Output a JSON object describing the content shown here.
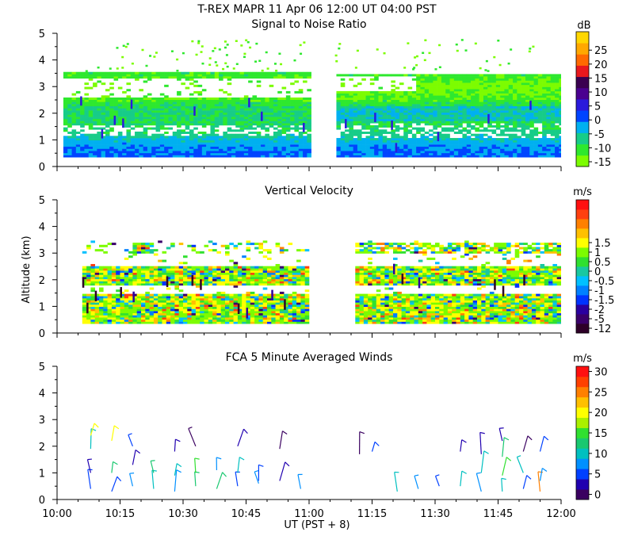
{
  "title": "T-REX  MAPR 11 Apr 06  12:00 UT  04:00  PST",
  "x_axis": {
    "label": "UT  (PST + 8)",
    "ticks": [
      "10:00",
      "10:15",
      "10:30",
      "10:45",
      "11:00",
      "11:15",
      "11:30",
      "11:45",
      "12:00"
    ],
    "range_minutes": [
      0,
      120
    ],
    "data_gap_minutes": [
      60,
      65
    ]
  },
  "y_axis": {
    "label": "Altitude (km)",
    "ticks": [
      "0",
      "1",
      "2",
      "3",
      "4",
      "5"
    ],
    "range": [
      0,
      5
    ]
  },
  "colors": {
    "snr_scale": [
      "#7cfc00",
      "#2ee82e",
      "#17cc88",
      "#00b0f0",
      "#0044ff",
      "#2a1adc",
      "#4a0090",
      "#3a0050",
      "#e8181e",
      "#ff6a00",
      "#ffa800",
      "#ffd700"
    ],
    "vel_scale": [
      "#2e0028",
      "#3a006a",
      "#2a00a0",
      "#0033ff",
      "#0080ff",
      "#00c0ff",
      "#19c8a0",
      "#30e030",
      "#7cfc00",
      "#ffff00",
      "#ffc000",
      "#ff8000",
      "#ff4010",
      "#ff1010"
    ],
    "wind_scale": [
      "#3a0060",
      "#2000b0",
      "#0040ff",
      "#0090ff",
      "#00c0c0",
      "#19c870",
      "#30e030",
      "#aaf000",
      "#ffff00",
      "#ffc000",
      "#ff8000",
      "#ff4000",
      "#ff1010"
    ]
  },
  "chart_data": [
    {
      "type": "heatmap",
      "title": "Signal to Noise Ratio",
      "unit": "dB",
      "colorbar_ticks": [
        "-15",
        "-10",
        "-5",
        "0",
        "5",
        "10",
        "15",
        "20",
        "25"
      ],
      "colorbar_range": [
        -15,
        25
      ],
      "colorbar_levels": 12,
      "altitude_range_km": [
        0.35,
        3.6
      ],
      "segments_minutes": [
        [
          0,
          60
        ],
        [
          65,
          120
        ]
      ],
      "profile": [
        {
          "alt": 0.4,
          "db": 1
        },
        {
          "alt": 0.6,
          "db": 0
        },
        {
          "alt": 0.9,
          "db": -3
        },
        {
          "alt": 1.2,
          "db": -8
        },
        {
          "alt": 1.6,
          "db": -10
        },
        {
          "alt": 2.0,
          "db": -9
        },
        {
          "alt": 2.3,
          "db": -11
        },
        {
          "alt": 2.6,
          "db": -14
        },
        {
          "alt": 3.0,
          "db": -16
        },
        {
          "alt": 3.4,
          "db": -12
        }
      ]
    },
    {
      "type": "heatmap",
      "title": "Vertical Velocity",
      "unit": "m/s",
      "colorbar_ticks": [
        "-12",
        "-5",
        "-2",
        "-1.5",
        "-1",
        "-0.5",
        "0",
        "0.5",
        "1",
        "1.5"
      ],
      "colorbar_levels": 14,
      "altitude_range_km": [
        0.35,
        3.6
      ],
      "segments_minutes": [
        [
          0,
          60
        ],
        [
          65,
          120
        ]
      ]
    },
    {
      "type": "scatter",
      "title": "FCA 5 Minute Averaged Winds",
      "unit": "m/s",
      "colorbar_ticks": [
        "0",
        "5",
        "10",
        "15",
        "20",
        "25",
        "30"
      ],
      "colorbar_range": [
        0,
        32.5
      ],
      "colorbar_levels": 13,
      "winds": [
        {
          "t": 8,
          "alt": 0.4,
          "speed": 6
        },
        {
          "t": 8,
          "alt": 1.0,
          "speed": 4
        },
        {
          "t": 8,
          "alt": 1.9,
          "speed": 11
        },
        {
          "t": 8,
          "alt": 2.4,
          "speed": 21
        },
        {
          "t": 13,
          "alt": 0.3,
          "speed": 7
        },
        {
          "t": 13,
          "alt": 1.0,
          "speed": 13
        },
        {
          "t": 13,
          "alt": 2.2,
          "speed": 20
        },
        {
          "t": 18,
          "alt": 0.5,
          "speed": 9
        },
        {
          "t": 18,
          "alt": 1.3,
          "speed": 3
        },
        {
          "t": 18,
          "alt": 2.0,
          "speed": 6
        },
        {
          "t": 23,
          "alt": 0.4,
          "speed": 12
        },
        {
          "t": 23,
          "alt": 1.0,
          "speed": 14
        },
        {
          "t": 28,
          "alt": 0.3,
          "speed": 8
        },
        {
          "t": 28,
          "alt": 0.9,
          "speed": 11
        },
        {
          "t": 28,
          "alt": 1.8,
          "speed": 3
        },
        {
          "t": 33,
          "alt": 0.5,
          "speed": 14
        },
        {
          "t": 33,
          "alt": 1.0,
          "speed": 15
        },
        {
          "t": 33,
          "alt": 2.0,
          "speed": 2
        },
        {
          "t": 38,
          "alt": 0.4,
          "speed": 13
        },
        {
          "t": 38,
          "alt": 1.1,
          "speed": 9
        },
        {
          "t": 43,
          "alt": 0.5,
          "speed": 5
        },
        {
          "t": 43,
          "alt": 1.0,
          "speed": 12
        },
        {
          "t": 43,
          "alt": 2.0,
          "speed": 3
        },
        {
          "t": 48,
          "alt": 0.6,
          "speed": 9
        },
        {
          "t": 48,
          "alt": 0.7,
          "speed": 6
        },
        {
          "t": 53,
          "alt": 0.7,
          "speed": 4
        },
        {
          "t": 53,
          "alt": 1.9,
          "speed": 2
        },
        {
          "t": 58,
          "alt": 0.4,
          "speed": 8
        },
        {
          "t": 72,
          "alt": 1.7,
          "speed": 2
        },
        {
          "t": 75,
          "alt": 1.8,
          "speed": 6
        },
        {
          "t": 81,
          "alt": 0.3,
          "speed": 11
        },
        {
          "t": 86,
          "alt": 0.4,
          "speed": 9
        },
        {
          "t": 91,
          "alt": 0.5,
          "speed": 7
        },
        {
          "t": 96,
          "alt": 0.5,
          "speed": 10
        },
        {
          "t": 96,
          "alt": 1.8,
          "speed": 4
        },
        {
          "t": 101,
          "alt": 0.3,
          "speed": 8
        },
        {
          "t": 101,
          "alt": 1.0,
          "speed": 12
        },
        {
          "t": 101,
          "alt": 1.7,
          "speed": 4
        },
        {
          "t": 106,
          "alt": 0.3,
          "speed": 12
        },
        {
          "t": 106,
          "alt": 0.9,
          "speed": 16
        },
        {
          "t": 106,
          "alt": 1.6,
          "speed": 13
        },
        {
          "t": 106,
          "alt": 2.2,
          "speed": 3
        },
        {
          "t": 111,
          "alt": 0.4,
          "speed": 7
        },
        {
          "t": 111,
          "alt": 1.0,
          "speed": 11
        },
        {
          "t": 111,
          "alt": 1.8,
          "speed": 2
        },
        {
          "t": 115,
          "alt": 0.3,
          "speed": 26
        },
        {
          "t": 115,
          "alt": 0.7,
          "speed": 8
        },
        {
          "t": 115,
          "alt": 1.8,
          "speed": 5
        }
      ]
    }
  ]
}
